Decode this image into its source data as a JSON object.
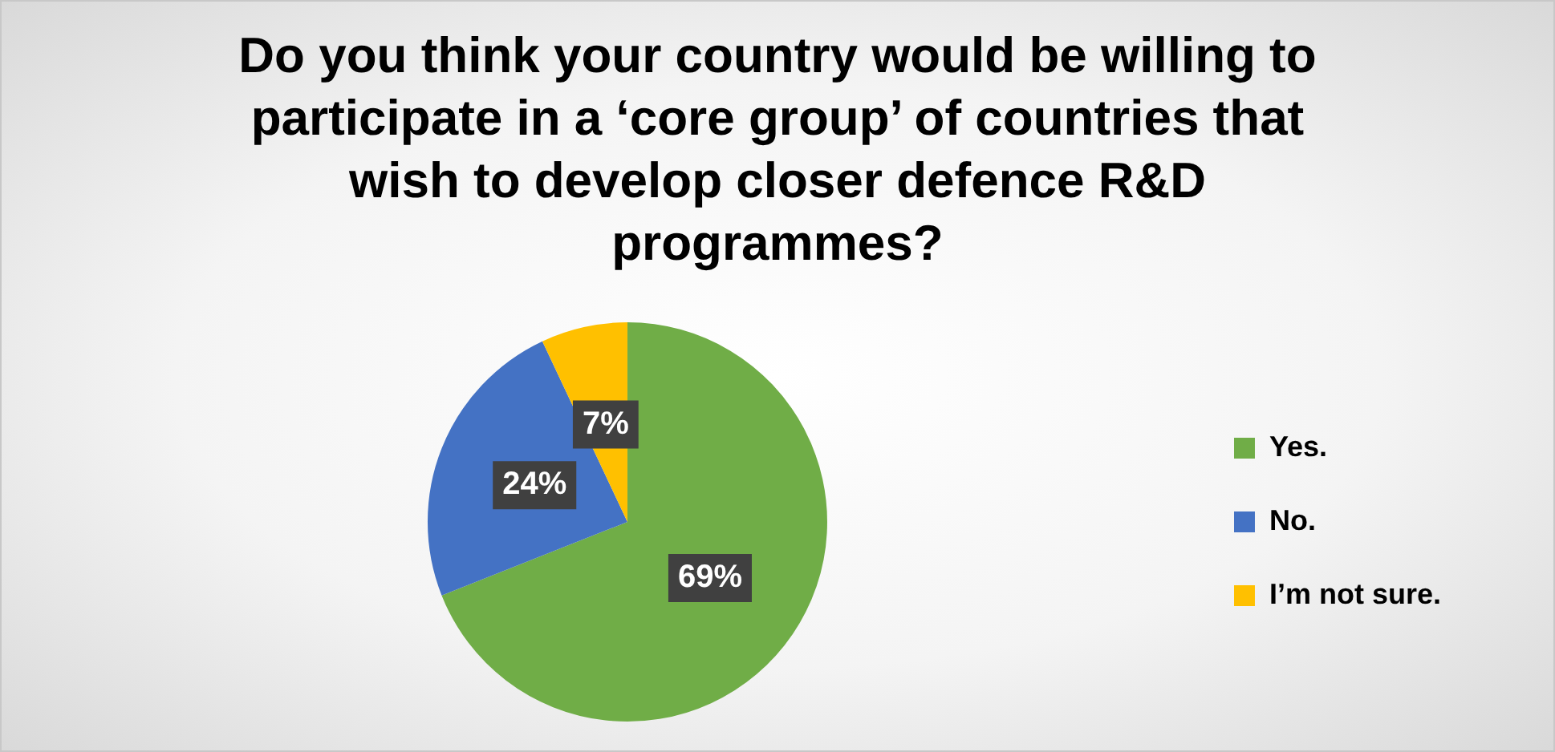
{
  "chart_data": {
    "type": "pie",
    "title": "Do you think your country would be willing to participate in a ‘core group’ of countries that wish to develop closer defence R&D programmes?",
    "categories": [
      "Yes.",
      "No.",
      "I’m not sure."
    ],
    "values": [
      69,
      24,
      7
    ],
    "colors": [
      "#70ad47",
      "#4472c4",
      "#ffc000"
    ],
    "value_labels": [
      "69%",
      "24%",
      "7%"
    ],
    "legend": "right"
  }
}
